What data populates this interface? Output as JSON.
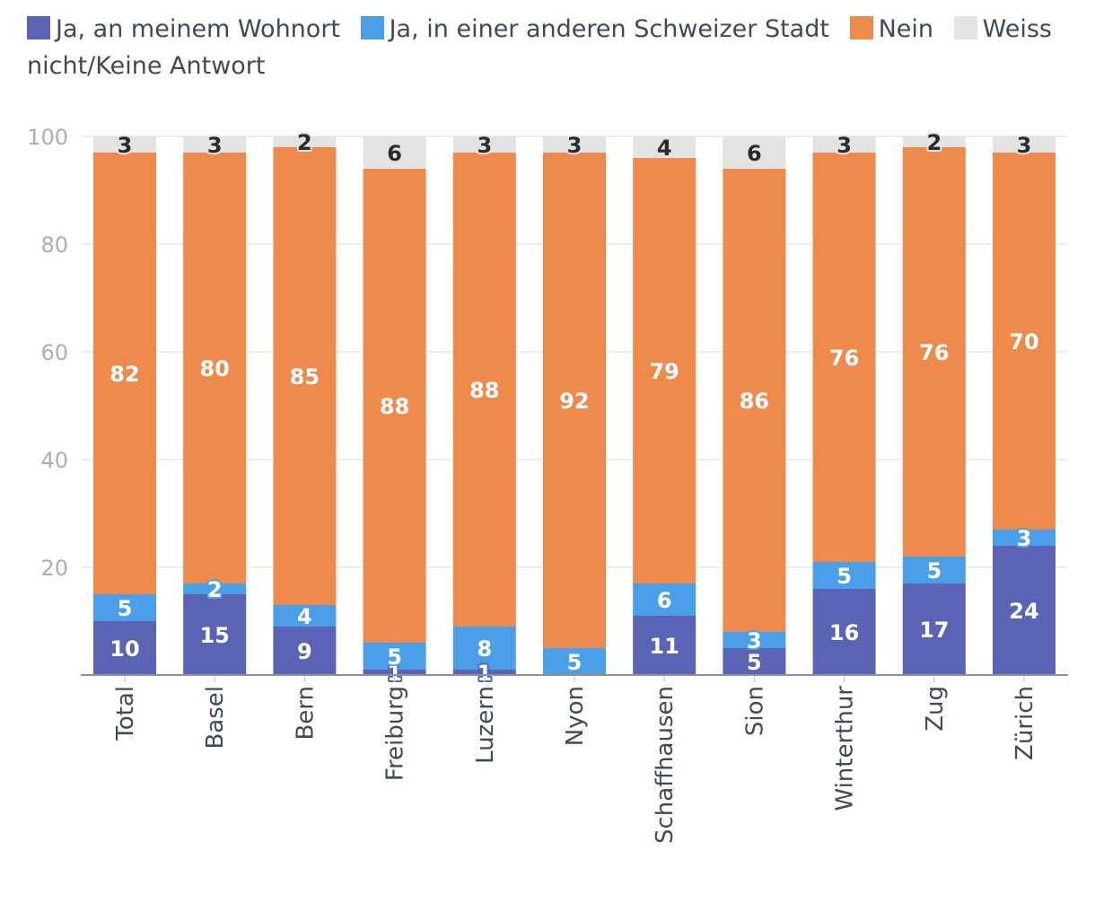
{
  "chart_data": {
    "type": "bar",
    "stacked": true,
    "categories": [
      "Total",
      "Basel",
      "Bern",
      "Freiburg",
      "Luzern",
      "Nyon",
      "Schaffhausen",
      "Sion",
      "Winterthur",
      "Zug",
      "Zürich"
    ],
    "series": [
      {
        "name": "Ja, an meinem Wohnort",
        "color": "#5b63b5",
        "values": [
          10,
          15,
          9,
          1,
          1,
          0,
          11,
          5,
          16,
          17,
          24
        ]
      },
      {
        "name": "Ja, in einer anderen Schweizer Stadt",
        "color": "#4a9fe8",
        "values": [
          5,
          2,
          4,
          5,
          8,
          5,
          6,
          3,
          5,
          5,
          3
        ]
      },
      {
        "name": "Nein",
        "color": "#ed8a4c",
        "values": [
          82,
          80,
          85,
          88,
          88,
          92,
          79,
          86,
          76,
          76,
          70
        ]
      },
      {
        "name": "Weiss nicht/Keine Antwort",
        "color": "#e3e3e3",
        "values": [
          3,
          3,
          2,
          6,
          3,
          3,
          4,
          6,
          3,
          2,
          3
        ]
      }
    ],
    "ylim": [
      0,
      100
    ],
    "yticks": [
      20,
      40,
      60,
      80,
      100
    ],
    "grid": true,
    "legend_position": "top",
    "title": "",
    "xlabel": "",
    "ylabel": ""
  }
}
